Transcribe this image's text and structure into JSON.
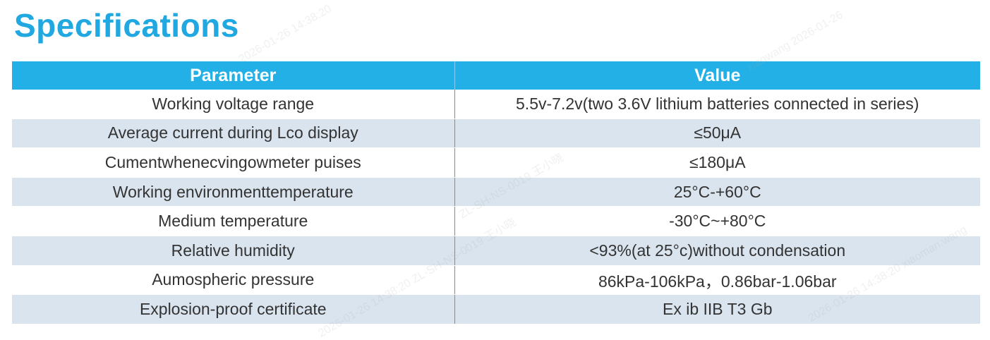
{
  "title": "Specifications",
  "table": {
    "headers": {
      "parameter": "Parameter",
      "value": "Value"
    },
    "rows": [
      {
        "parameter": "Working voltage range",
        "value": "5.5v-7.2v(two 3.6V lithium batteries connected in series)"
      },
      {
        "parameter": "Average current during Lco display",
        "value": "≤50μA"
      },
      {
        "parameter": "Cumentwhenecvingowmeter puises",
        "value": "≤180μA"
      },
      {
        "parameter": "Working environmenttemperature",
        "value": "25°C-+60°C"
      },
      {
        "parameter": "Medium temperature",
        "value": "-30°C~+80°C"
      },
      {
        "parameter": "Relative humidity",
        "value": "<93%(at 25°c)without condensation"
      },
      {
        "parameter": "Aumospheric pressure",
        "value": "86kPa-106kPa，0.86bar-1.06bar"
      },
      {
        "parameter": "Explosion-proof certificate",
        "value": "Ex ib IIB T3 Gb"
      }
    ]
  },
  "colors": {
    "title": "#21a8e0",
    "header_bg": "#23b0e6",
    "alt_row_bg": "#dae4ee",
    "text": "#333333"
  },
  "watermarks": [
    "2026-01-26 14:38:20",
    "ZL-SH-NS-0019 王小晓",
    "2026-01-26 14:38:20 ZL-SH-NS-0019 王小晓",
    "xiaowang 2026-01-26",
    "2026-01-26 14:38:20 xiaoman.wang"
  ]
}
